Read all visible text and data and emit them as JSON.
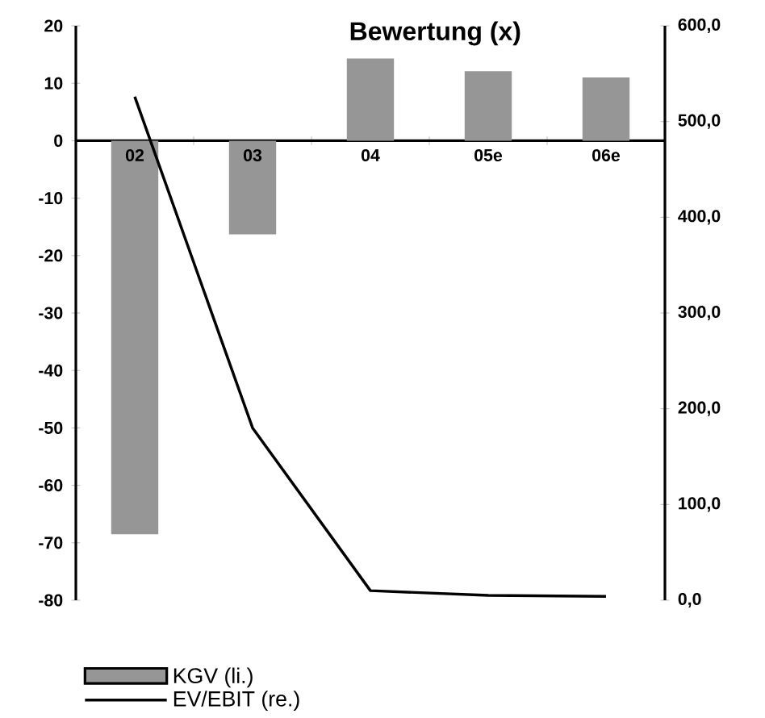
{
  "chart_data": {
    "type": "bar",
    "title": "Bewertung  (x)",
    "categories": [
      "02",
      "03",
      "04",
      "05e",
      "06e"
    ],
    "series": [
      {
        "name": "KGV (li.)",
        "color": "#969696",
        "values": [
          -68.5,
          -16.3,
          14.3,
          12.1,
          11.0
        ]
      },
      {
        "name": "EV/EBIT (re.)",
        "type": "line",
        "axis": "y2",
        "color": "#000000",
        "values": [
          526,
          180,
          10,
          5,
          4
        ]
      }
    ],
    "ylim": [
      -80,
      20
    ],
    "yticks": [
      -80,
      -70,
      -60,
      -50,
      -40,
      -30,
      -20,
      -10,
      0,
      10,
      20
    ],
    "y2lim": [
      0,
      600
    ],
    "y2ticks": [
      {
        "value": 0,
        "label": "0,0"
      },
      {
        "value": 100,
        "label": "100,0"
      },
      {
        "value": 200,
        "label": "200,0"
      },
      {
        "value": 300,
        "label": "300,0"
      },
      {
        "value": 400,
        "label": "400,0"
      },
      {
        "value": 500,
        "label": "500,0"
      },
      {
        "value": 600,
        "label": "600,0"
      }
    ],
    "grid": false,
    "legend": "bottom left",
    "marker": "none",
    "line_style": "solid"
  }
}
